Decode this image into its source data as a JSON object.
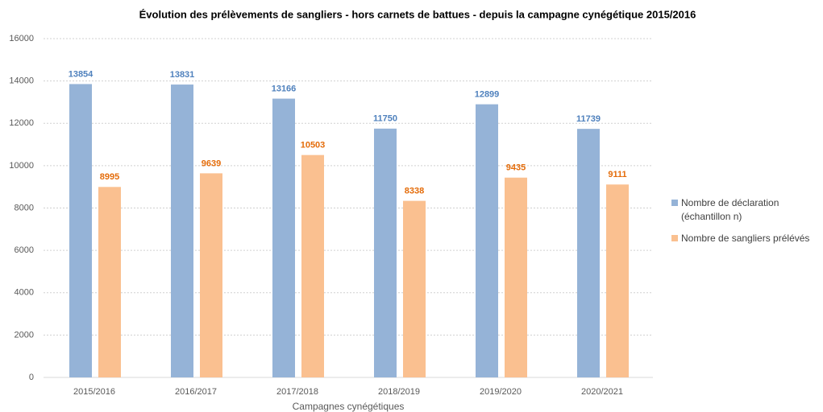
{
  "chart_data": {
    "type": "bar",
    "title": "Évolution des prélèvements de sangliers - hors carnets de battues - depuis la campagne cynégétique 2015/2016",
    "x_label": "Campagnes cynégétiques",
    "categories": [
      "2015/2016",
      "2016/2017",
      "2017/2018",
      "2018/2019",
      "2019/2020",
      "2020/2021"
    ],
    "series": [
      {
        "name": "Nombre de déclaration (échantillon n)",
        "color": "#95b3d7",
        "label_color": "#4f81bd",
        "values": [
          13854,
          13831,
          13166,
          11750,
          12899,
          11739
        ]
      },
      {
        "name": "Nombre de sangliers prélévés",
        "color": "#fac090",
        "label_color": "#e46c0a",
        "values": [
          8995,
          9639,
          10503,
          8338,
          9435,
          9111
        ]
      }
    ],
    "ylim": [
      0,
      16000
    ],
    "yticks": [
      0,
      2000,
      4000,
      6000,
      8000,
      10000,
      12000,
      14000,
      16000
    ],
    "grid": true,
    "legend": "right"
  }
}
